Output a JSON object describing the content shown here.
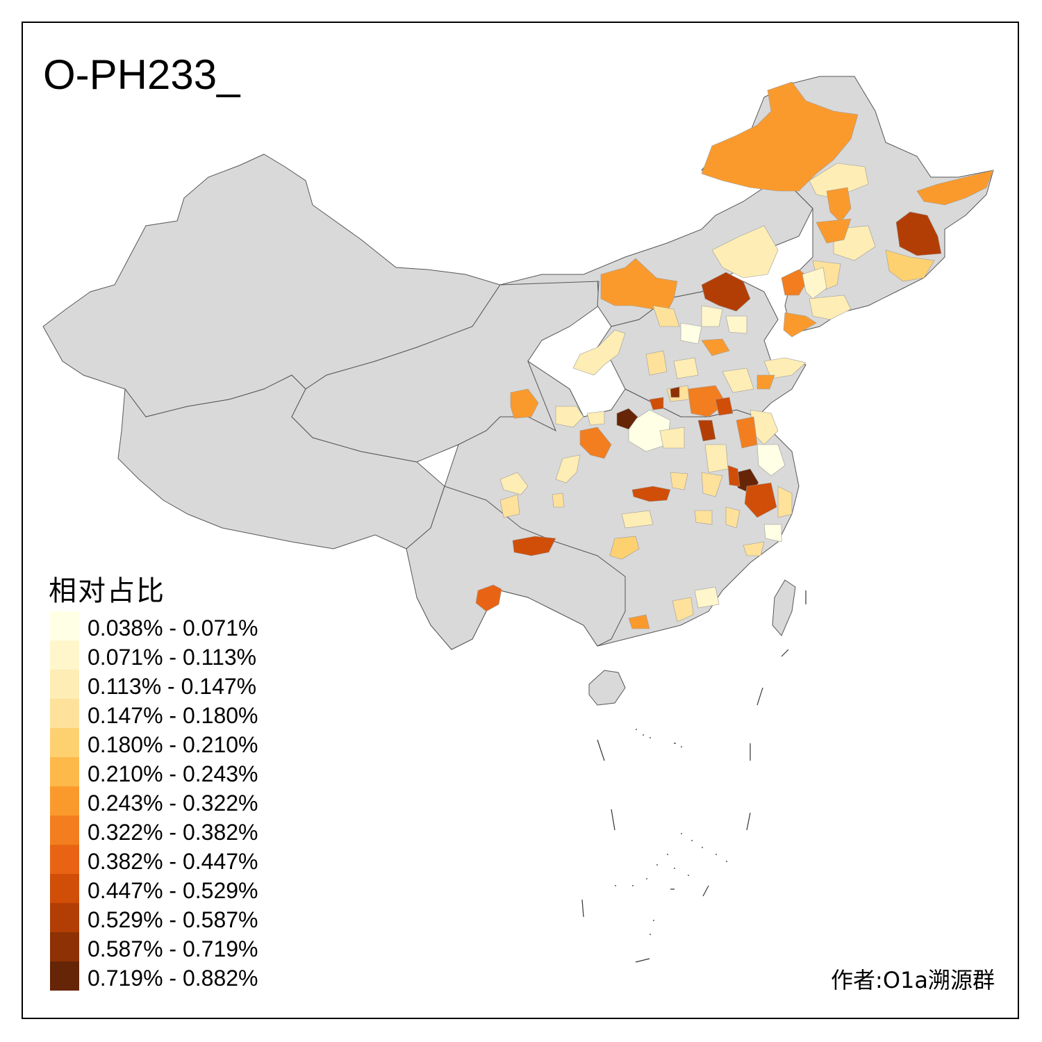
{
  "title": "O-PH233_",
  "legend": {
    "title": "相对占比",
    "classes": [
      {
        "label": "0.038% - 0.071%",
        "color": "#FFFFE6"
      },
      {
        "label": "0.071% - 0.113%",
        "color": "#FFF6CC"
      },
      {
        "label": "0.113% - 0.147%",
        "color": "#FEEDB4"
      },
      {
        "label": "0.147% - 0.180%",
        "color": "#FEE19A"
      },
      {
        "label": "0.180% - 0.210%",
        "color": "#FED170"
      },
      {
        "label": "0.210% - 0.243%",
        "color": "#FDB94A"
      },
      {
        "label": "0.243% - 0.322%",
        "color": "#FB9A2C"
      },
      {
        "label": "0.322% - 0.382%",
        "color": "#F37E1F"
      },
      {
        "label": "0.382% - 0.447%",
        "color": "#E86414"
      },
      {
        "label": "0.447% - 0.529%",
        "color": "#D04E08"
      },
      {
        "label": "0.529% - 0.587%",
        "color": "#B33E05"
      },
      {
        "label": "0.587% - 0.719%",
        "color": "#8E3104"
      },
      {
        "label": "0.719% - 0.882%",
        "color": "#662506"
      }
    ]
  },
  "credit": "作者:O1a溯源群",
  "colors": {
    "no_data": "#D9D9D9",
    "border": "#555555",
    "frame": "#000000"
  }
}
